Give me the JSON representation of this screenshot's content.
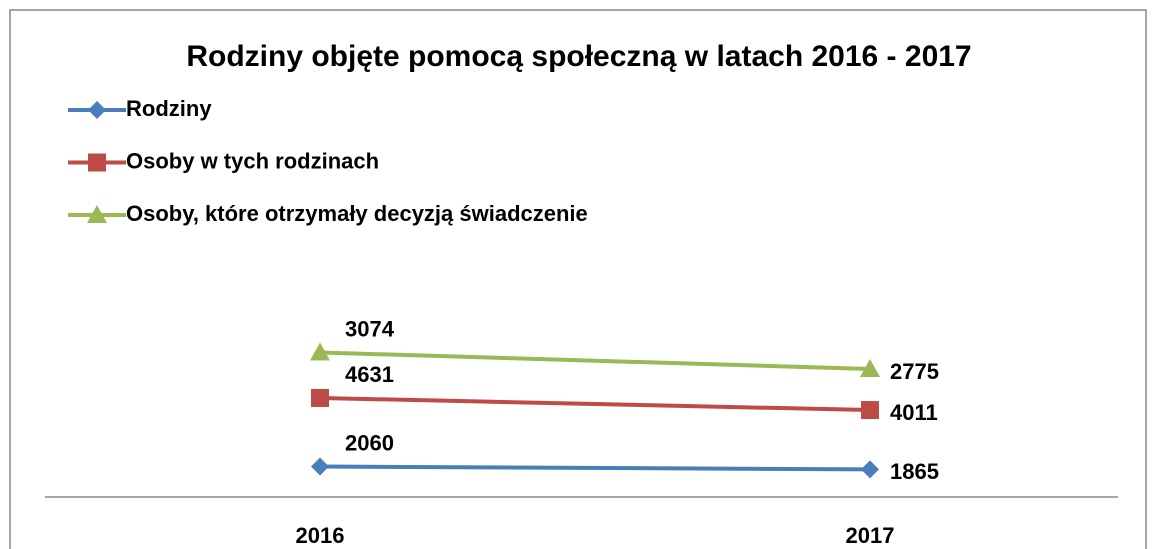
{
  "chart_data": {
    "type": "line",
    "stacked": true,
    "title": "Rodziny objęte pomocą społeczną w latach 2016 - 2017",
    "categories": [
      "2016",
      "2017"
    ],
    "series": [
      {
        "name": "Rodziny",
        "color": "#4a7ebb",
        "marker": "diamond",
        "values": [
          2060,
          1865
        ]
      },
      {
        "name": "Osoby w tych rodzinach",
        "color": "#be4b48",
        "marker": "square",
        "values": [
          4631,
          4011
        ]
      },
      {
        "name": "Osoby, które otrzymały decyzją świadczenie",
        "color": "#98b954",
        "marker": "triangle",
        "values": [
          3074,
          2775
        ]
      }
    ],
    "ylim": [
      0,
      25000
    ],
    "legend": "top-left"
  }
}
